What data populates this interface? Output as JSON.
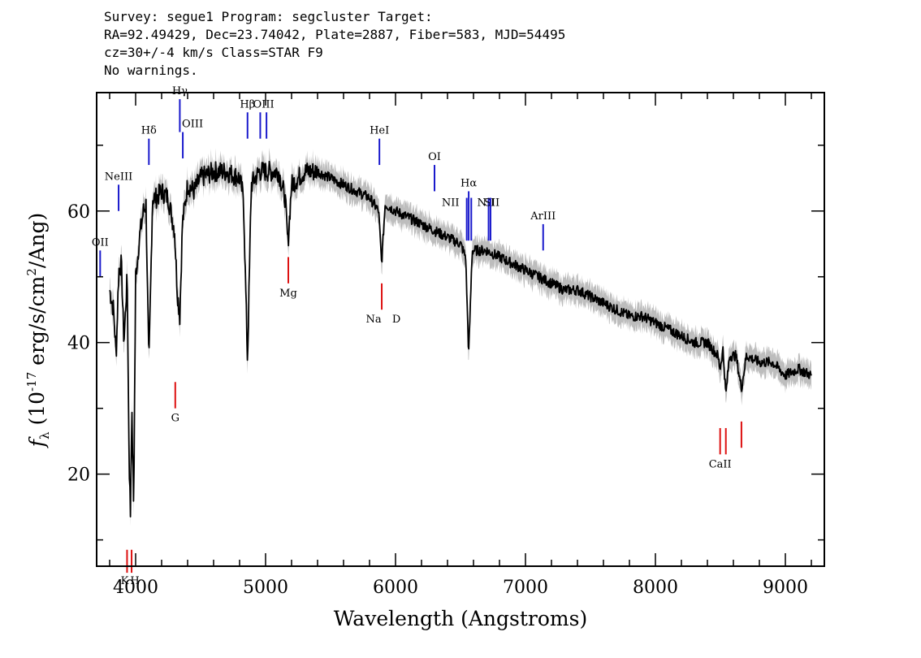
{
  "header": {
    "line1": "Survey: segue1 Program: segcluster Target:",
    "line2": "RA=92.49429, Dec=23.74042, Plate=2887, Fiber=583, MJD=54495",
    "line3": "cz=30+/-4 km/s Class=STAR F9",
    "line4": "No warnings."
  },
  "colors": {
    "spectrum": "#000000",
    "error_band": "#bdbdbd",
    "emission_marker": "#1a1acc",
    "absorption_marker": "#dd1111"
  },
  "chart_data": {
    "type": "line",
    "title": "",
    "xlabel": "Wavelength (Angstroms)",
    "ylabel": "f_λ (10^-17 erg/s/cm^2/Ang)",
    "xlim": [
      3700,
      9300
    ],
    "ylim": [
      6,
      78
    ],
    "x_ticks": [
      4000,
      5000,
      6000,
      7000,
      8000,
      9000
    ],
    "y_ticks": [
      20,
      40,
      60
    ],
    "grid": false,
    "series": [
      {
        "x": [
          3800,
          3830,
          3850,
          3870,
          3890,
          3910,
          3935,
          3950,
          3960,
          3970,
          3985,
          4000,
          4030,
          4060,
          4080,
          4102,
          4130,
          4160,
          4200,
          4250,
          4300,
          4320,
          4340,
          4360,
          4400,
          4450,
          4500,
          4600,
          4700,
          4800,
          4830,
          4861,
          4890,
          4950,
          5000,
          5100,
          5150,
          5172,
          5200,
          5300,
          5400,
          5500,
          5600,
          5700,
          5800,
          5870,
          5893,
          5920,
          6000,
          6100,
          6200,
          6300,
          6400,
          6500,
          6540,
          6563,
          6590,
          6700,
          6800,
          6900,
          7000,
          7100,
          7200,
          7300,
          7400,
          7500,
          7600,
          7700,
          7800,
          7900,
          8000,
          8100,
          8200,
          8300,
          8400,
          8480,
          8498,
          8520,
          8542,
          8570,
          8620,
          8662,
          8700,
          8800,
          8900,
          9000,
          9100,
          9200
        ],
        "y": [
          48,
          45,
          38,
          51,
          52,
          40,
          50,
          22,
          14,
          30,
          15,
          50,
          56,
          60,
          61,
          36,
          62,
          62,
          63,
          62,
          57,
          48,
          44,
          58,
          64,
          63,
          65,
          66,
          66,
          65,
          62,
          37,
          64,
          66,
          66,
          66,
          62,
          55,
          64,
          66,
          66,
          65,
          64,
          63,
          62,
          60,
          52,
          61,
          60,
          59,
          58,
          57,
          56,
          55,
          53,
          38,
          54,
          54,
          53,
          52,
          51,
          50,
          49,
          48,
          48,
          47,
          46,
          45,
          44,
          44,
          43,
          42,
          41,
          40,
          40,
          38,
          36,
          39,
          32,
          38,
          38,
          33,
          38,
          37,
          37,
          35,
          36,
          35
        ]
      }
    ],
    "emission_lines": [
      {
        "label": "OII",
        "wave": 3727
      },
      {
        "label": "NeIII",
        "wave": 3869
      },
      {
        "label": "Hδ",
        "wave": 4102
      },
      {
        "label": "Hγ",
        "wave": 4340
      },
      {
        "label": "OIII",
        "wave": 4363
      },
      {
        "label": "Hβ",
        "wave": 4861
      },
      {
        "label": "OIII",
        "wave": 4959
      },
      {
        "label": "OIII",
        "wave": 5007
      },
      {
        "label": "HeI",
        "wave": 5876
      },
      {
        "label": "OI",
        "wave": 6300
      },
      {
        "label": "NII",
        "wave": 6548
      },
      {
        "label": "Hα",
        "wave": 6563
      },
      {
        "label": "NII",
        "wave": 6583
      },
      {
        "label": "SII",
        "wave": 6716
      },
      {
        "label": "SII",
        "wave": 6731
      },
      {
        "label": "ArIII",
        "wave": 7136
      }
    ],
    "absorption_lines": [
      {
        "label": "K",
        "wave": 3934
      },
      {
        "label": "H",
        "wave": 3969
      },
      {
        "label": "G",
        "wave": 4305
      },
      {
        "label": "Mg",
        "wave": 5175
      },
      {
        "label": "Na",
        "wave": 5894
      },
      {
        "label": "D",
        "wave": 5894
      },
      {
        "label": "CaII",
        "wave": 8498
      },
      {
        "label": "CaII",
        "wave": 8542
      },
      {
        "label": "CaII",
        "wave": 8662
      }
    ]
  }
}
